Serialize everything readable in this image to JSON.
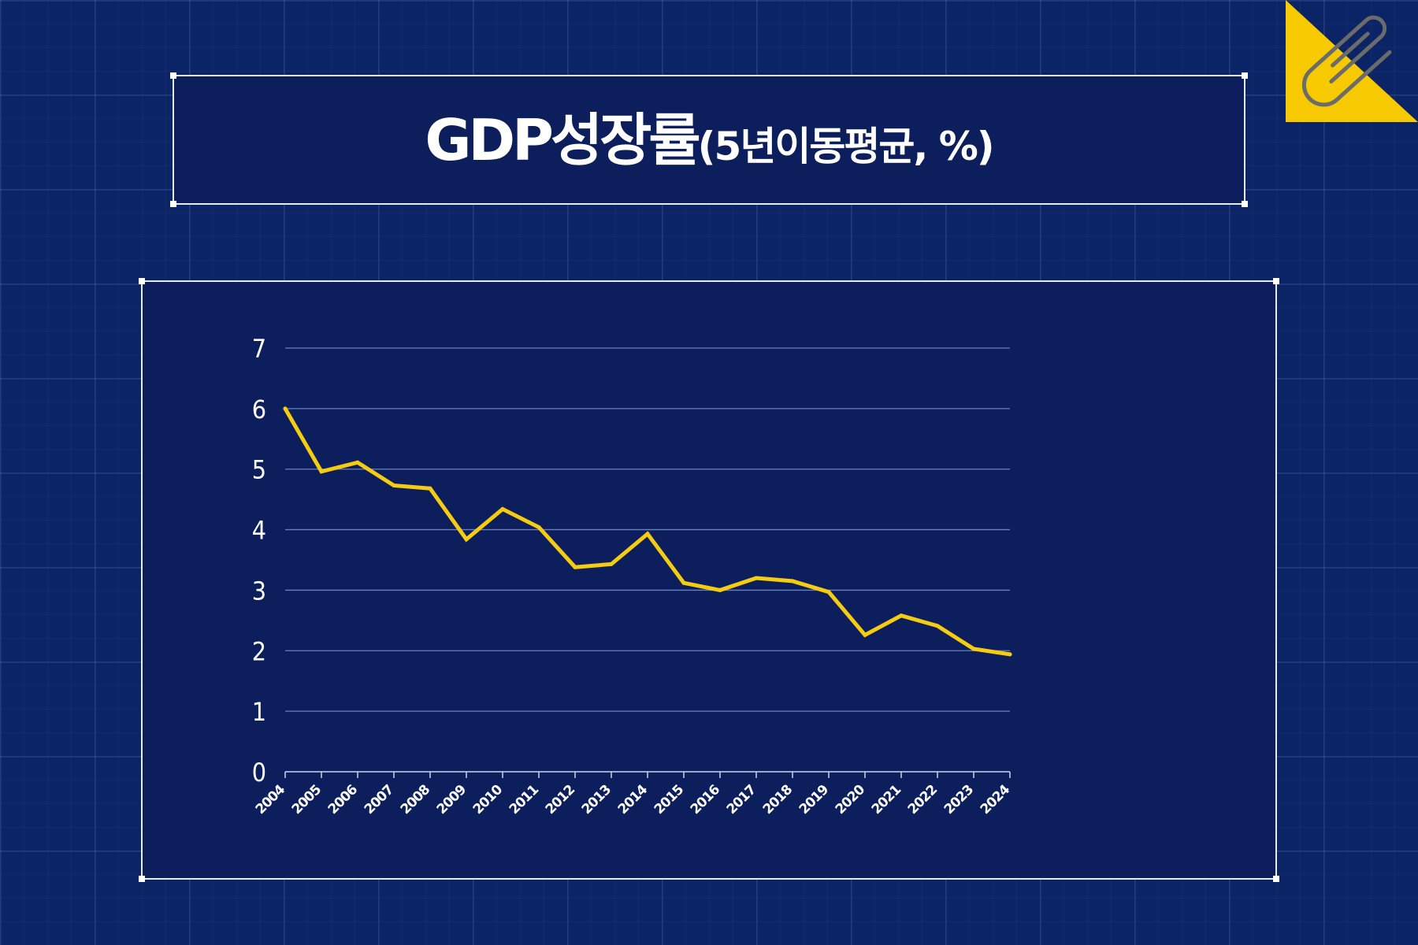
{
  "title": {
    "main": "GDP성장률",
    "sub": "(5년이동평균, %)"
  },
  "colors": {
    "background": "#0b2466",
    "panel": "#0c1f5c",
    "line": "#f5cc12",
    "gridline": "#7a92d0",
    "text": "#ffffff",
    "corner_accent": "#f7c900"
  },
  "corner_icon": "paperclip-icon",
  "chart_data": {
    "type": "line",
    "title": "GDP성장률(5년이동평균, %)",
    "xlabel": "",
    "ylabel": "",
    "x": [
      "2004",
      "2005",
      "2006",
      "2007",
      "2008",
      "2009",
      "2010",
      "2011",
      "2012",
      "2013",
      "2014",
      "2015",
      "2016",
      "2017",
      "2018",
      "2019",
      "2020",
      "2021",
      "2022",
      "2023",
      "2024"
    ],
    "y_ticks": [
      "0",
      "1",
      "2",
      "3",
      "4",
      "5",
      "6",
      "7"
    ],
    "ylim": [
      0,
      7
    ],
    "grid": "horizontal",
    "legend": "none",
    "series": [
      {
        "values": [
          6.0,
          4.96,
          5.11,
          4.73,
          4.68,
          3.84,
          4.34,
          4.04,
          3.38,
          3.43,
          3.93,
          3.12,
          3.0,
          3.2,
          3.15,
          2.97,
          2.26,
          2.58,
          2.41,
          2.03,
          1.94
        ]
      }
    ]
  }
}
